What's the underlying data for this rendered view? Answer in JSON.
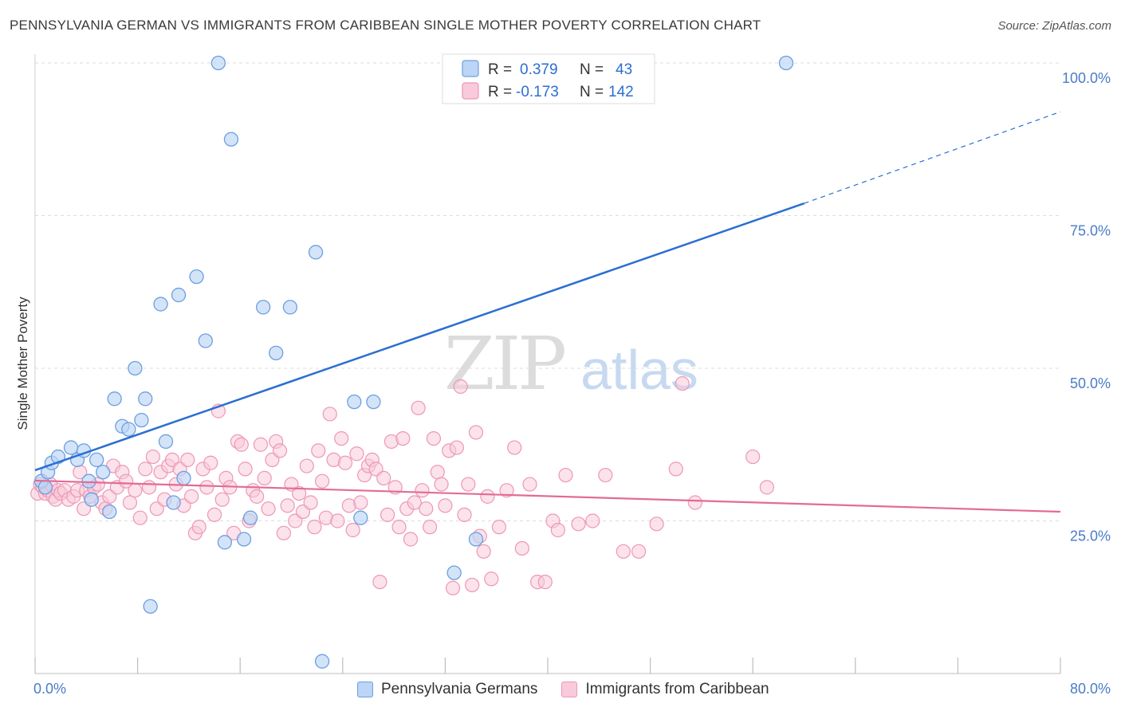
{
  "header": {
    "title": "PENNSYLVANIA GERMAN VS IMMIGRANTS FROM CARIBBEAN SINGLE MOTHER POVERTY CORRELATION CHART",
    "source": "Source: ZipAtlas.com"
  },
  "watermark": {
    "zip": "ZIP",
    "atlas": "atlas"
  },
  "colors": {
    "blue_stroke": "#6c9fe0",
    "blue_fill": "#bcd5f6",
    "blue_line": "#2b6fd1",
    "pink_stroke": "#ee97b4",
    "pink_fill": "#f8cadb",
    "pink_line": "#e36b95",
    "tick_label": "#4a7cc9"
  },
  "legend_top": {
    "rows": [
      {
        "r_label": "R =",
        "r_value": "0.379",
        "n_label": "N =",
        "n_value": "43"
      },
      {
        "r_label": "R =",
        "r_value": "-0.173",
        "n_label": "N =",
        "n_value": "142"
      }
    ]
  },
  "legend_bottom": {
    "items": [
      "Pennsylvania Germans",
      "Immigrants from Caribbean"
    ]
  },
  "chart_data": {
    "type": "scatter",
    "title": "PENNSYLVANIA GERMAN VS IMMIGRANTS FROM CARIBBEAN SINGLE MOTHER POVERTY CORRELATION CHART",
    "xlabel": "",
    "ylabel": "Single Mother Poverty",
    "xlim": [
      0,
      80
    ],
    "ylim": [
      0,
      100
    ],
    "x_tick_labels": [
      "0.0%",
      "80.0%"
    ],
    "y_ticks": [
      25,
      50,
      75,
      100
    ],
    "y_tick_labels": [
      "25.0%",
      "50.0%",
      "75.0%",
      "100.0%"
    ],
    "grid": "horizontal dashed",
    "legend_position": "top-center",
    "series": [
      {
        "name": "Pennsylvania Germans",
        "color": "#6c9fe0",
        "points": [
          [
            0.5,
            31.5
          ],
          [
            0.8,
            30.5
          ],
          [
            1.0,
            33.0
          ],
          [
            1.3,
            34.5
          ],
          [
            1.8,
            35.5
          ],
          [
            2.8,
            37.0
          ],
          [
            3.3,
            35.0
          ],
          [
            3.8,
            36.5
          ],
          [
            4.2,
            31.5
          ],
          [
            4.4,
            28.5
          ],
          [
            4.8,
            35.0
          ],
          [
            5.3,
            33.0
          ],
          [
            5.8,
            26.5
          ],
          [
            6.2,
            45.0
          ],
          [
            6.8,
            40.5
          ],
          [
            7.3,
            40.0
          ],
          [
            7.8,
            50.0
          ],
          [
            8.3,
            41.5
          ],
          [
            8.6,
            45.0
          ],
          [
            9.0,
            11.0
          ],
          [
            9.8,
            60.5
          ],
          [
            10.2,
            38.0
          ],
          [
            10.8,
            28.0
          ],
          [
            11.2,
            62.0
          ],
          [
            11.6,
            32.0
          ],
          [
            12.6,
            65.0
          ],
          [
            13.3,
            54.5
          ],
          [
            14.3,
            100.0
          ],
          [
            14.8,
            21.5
          ],
          [
            15.3,
            87.5
          ],
          [
            16.3,
            22.0
          ],
          [
            16.8,
            25.5
          ],
          [
            17.8,
            60.0
          ],
          [
            18.8,
            52.5
          ],
          [
            19.9,
            60.0
          ],
          [
            21.9,
            69.0
          ],
          [
            22.4,
            2.0
          ],
          [
            24.9,
            44.5
          ],
          [
            25.4,
            25.5
          ],
          [
            26.4,
            44.5
          ],
          [
            32.7,
            16.5
          ],
          [
            34.4,
            22.0
          ],
          [
            58.6,
            100.0
          ]
        ],
        "trend": {
          "x0": 0,
          "y0": 33.3,
          "x1": 60,
          "y1": 77.0,
          "dashed_to_x": 80,
          "dashed_to_y": 92.0
        }
      },
      {
        "name": "Immigrants from Caribbean",
        "color": "#ee97b4",
        "points": [
          [
            0.2,
            29.5
          ],
          [
            0.4,
            31.0
          ],
          [
            0.6,
            30.5
          ],
          [
            0.8,
            29.5
          ],
          [
            1.0,
            30.0
          ],
          [
            1.2,
            31.0
          ],
          [
            1.4,
            29.0
          ],
          [
            1.6,
            28.5
          ],
          [
            1.8,
            30.0
          ],
          [
            2.0,
            29.5
          ],
          [
            2.3,
            30.0
          ],
          [
            2.6,
            28.5
          ],
          [
            3.0,
            29.0
          ],
          [
            3.3,
            30.0
          ],
          [
            3.5,
            33.0
          ],
          [
            3.8,
            27.0
          ],
          [
            4.0,
            30.0
          ],
          [
            4.3,
            29.0
          ],
          [
            4.6,
            30.5
          ],
          [
            4.9,
            31.0
          ],
          [
            5.2,
            28.0
          ],
          [
            5.5,
            27.0
          ],
          [
            5.8,
            29.0
          ],
          [
            6.1,
            34.0
          ],
          [
            6.4,
            30.5
          ],
          [
            6.8,
            33.0
          ],
          [
            7.1,
            31.5
          ],
          [
            7.4,
            28.0
          ],
          [
            7.8,
            30.0
          ],
          [
            8.2,
            25.5
          ],
          [
            8.6,
            33.5
          ],
          [
            8.9,
            30.5
          ],
          [
            9.2,
            35.5
          ],
          [
            9.5,
            27.0
          ],
          [
            9.8,
            33.0
          ],
          [
            10.1,
            28.5
          ],
          [
            10.4,
            34.0
          ],
          [
            10.7,
            35.0
          ],
          [
            11.0,
            31.0
          ],
          [
            11.3,
            33.5
          ],
          [
            11.6,
            27.5
          ],
          [
            11.9,
            35.0
          ],
          [
            12.2,
            29.0
          ],
          [
            12.5,
            23.0
          ],
          [
            12.8,
            24.0
          ],
          [
            13.1,
            33.5
          ],
          [
            13.4,
            30.5
          ],
          [
            13.7,
            34.5
          ],
          [
            14.0,
            26.0
          ],
          [
            14.3,
            43.0
          ],
          [
            14.6,
            28.5
          ],
          [
            14.9,
            32.0
          ],
          [
            15.2,
            30.5
          ],
          [
            15.5,
            23.0
          ],
          [
            15.8,
            38.0
          ],
          [
            16.1,
            37.5
          ],
          [
            16.4,
            33.5
          ],
          [
            16.7,
            25.0
          ],
          [
            17.0,
            30.0
          ],
          [
            17.3,
            29.0
          ],
          [
            17.6,
            37.5
          ],
          [
            17.9,
            32.0
          ],
          [
            18.2,
            27.0
          ],
          [
            18.5,
            35.0
          ],
          [
            18.8,
            38.0
          ],
          [
            19.1,
            36.5
          ],
          [
            19.4,
            23.0
          ],
          [
            19.7,
            27.5
          ],
          [
            20.0,
            31.0
          ],
          [
            20.3,
            25.0
          ],
          [
            20.6,
            29.5
          ],
          [
            20.9,
            26.5
          ],
          [
            21.2,
            34.0
          ],
          [
            21.5,
            28.0
          ],
          [
            21.8,
            24.0
          ],
          [
            22.1,
            36.5
          ],
          [
            22.4,
            31.5
          ],
          [
            22.7,
            25.5
          ],
          [
            23.0,
            42.5
          ],
          [
            23.3,
            35.0
          ],
          [
            23.6,
            25.0
          ],
          [
            23.9,
            38.5
          ],
          [
            24.2,
            34.5
          ],
          [
            24.5,
            27.5
          ],
          [
            24.8,
            23.5
          ],
          [
            25.1,
            36.0
          ],
          [
            25.4,
            28.0
          ],
          [
            25.7,
            32.5
          ],
          [
            26.0,
            34.0
          ],
          [
            26.3,
            35.0
          ],
          [
            26.6,
            33.5
          ],
          [
            26.9,
            15.0
          ],
          [
            27.2,
            32.0
          ],
          [
            27.5,
            26.0
          ],
          [
            27.8,
            38.0
          ],
          [
            28.1,
            30.5
          ],
          [
            28.4,
            24.0
          ],
          [
            28.7,
            38.5
          ],
          [
            29.0,
            27.0
          ],
          [
            29.3,
            22.0
          ],
          [
            29.6,
            28.0
          ],
          [
            29.9,
            43.5
          ],
          [
            30.2,
            30.0
          ],
          [
            30.5,
            27.0
          ],
          [
            30.8,
            24.0
          ],
          [
            31.1,
            38.5
          ],
          [
            31.4,
            33.0
          ],
          [
            31.7,
            31.0
          ],
          [
            32.0,
            27.5
          ],
          [
            32.3,
            36.5
          ],
          [
            32.6,
            14.0
          ],
          [
            32.9,
            37.0
          ],
          [
            33.2,
            47.0
          ],
          [
            33.5,
            26.0
          ],
          [
            33.8,
            31.0
          ],
          [
            34.1,
            14.5
          ],
          [
            34.4,
            39.5
          ],
          [
            34.7,
            22.5
          ],
          [
            35.0,
            20.0
          ],
          [
            35.3,
            29.0
          ],
          [
            35.6,
            15.5
          ],
          [
            36.2,
            24.0
          ],
          [
            36.8,
            30.0
          ],
          [
            37.4,
            37.0
          ],
          [
            38.0,
            20.5
          ],
          [
            38.6,
            31.0
          ],
          [
            39.2,
            15.0
          ],
          [
            39.8,
            15.0
          ],
          [
            40.4,
            25.0
          ],
          [
            40.8,
            23.5
          ],
          [
            41.4,
            32.5
          ],
          [
            42.4,
            24.5
          ],
          [
            43.5,
            25.0
          ],
          [
            44.5,
            32.5
          ],
          [
            45.9,
            20.0
          ],
          [
            47.1,
            20.0
          ],
          [
            48.5,
            24.5
          ],
          [
            50.0,
            33.5
          ],
          [
            50.5,
            47.5
          ],
          [
            51.5,
            28.0
          ],
          [
            56.0,
            35.5
          ],
          [
            57.1,
            30.5
          ]
        ],
        "trend": {
          "x0": 0,
          "y0": 31.6,
          "x1": 80,
          "y1": 26.5
        }
      }
    ]
  }
}
